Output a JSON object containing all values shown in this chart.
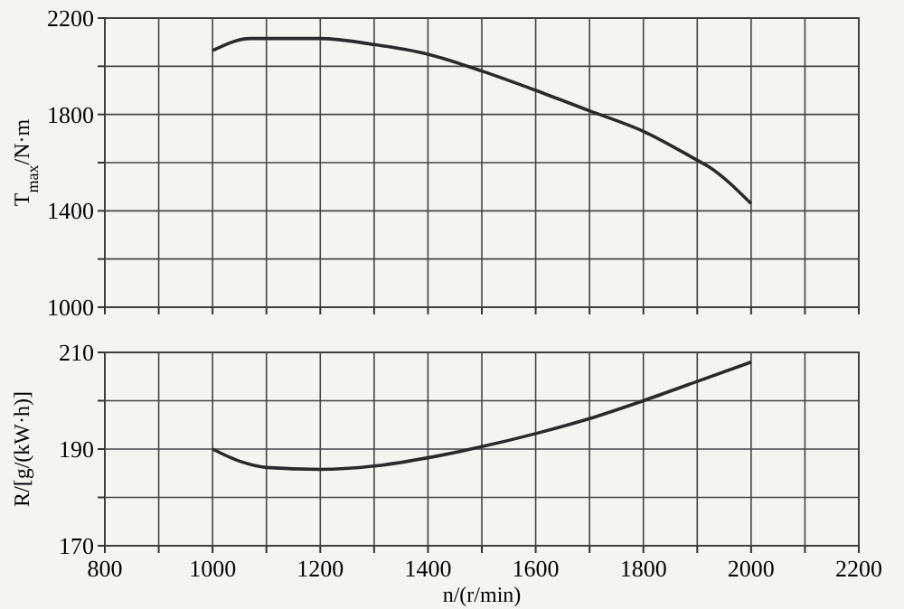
{
  "chart_data": [
    {
      "type": "line",
      "ylabel": "T$_{max}$/N·m",
      "x": [
        1000,
        1070,
        1200,
        1300,
        1400,
        1500,
        1600,
        1700,
        1800,
        1900,
        1920,
        2000
      ],
      "series": [
        {
          "color": "#2a2a2a",
          "values": [
            2065,
            2115,
            2115,
            2090,
            2050,
            1980,
            1900,
            1815,
            1730,
            1610,
            1585,
            1430
          ]
        }
      ],
      "xlim": [
        800,
        2200
      ],
      "xticks": [
        800,
        {
          "value": 900,
          "label": null
        },
        1000,
        {
          "value": 1100,
          "label": null
        },
        1200,
        {
          "value": 1300,
          "label": null
        },
        1400,
        {
          "value": 1500,
          "label": null
        },
        1600,
        {
          "value": 1700,
          "label": null
        },
        1800,
        {
          "value": 1900,
          "label": null
        },
        2000,
        {
          "value": 2100,
          "label": null
        },
        2200
      ],
      "ylim": [
        1000,
        2200
      ],
      "yticks": [
        1000,
        {
          "value": 1200,
          "label": null
        },
        1400,
        {
          "value": 1600,
          "label": null
        },
        1800,
        {
          "value": 2000,
          "label": null
        },
        2200
      ],
      "grid": true,
      "tick_labels": "y",
      "marker": "none",
      "line_style": "solid"
    },
    {
      "type": "line",
      "xlabel": "n/(r/min)",
      "ylabel": "R/[g/(kW·h)]",
      "x": [
        1000,
        1050,
        1100,
        1200,
        1300,
        1400,
        1500,
        1600,
        1700,
        1800,
        1900,
        2000
      ],
      "series": [
        {
          "color": "#2a2a2a",
          "values": [
            190,
            187.5,
            186.2,
            185.8,
            186.5,
            188.2,
            190.5,
            193.2,
            196.3,
            200,
            204,
            208
          ]
        }
      ],
      "xlim": [
        800,
        2200
      ],
      "xticks": [
        800,
        {
          "value": 900,
          "label": null
        },
        1000,
        {
          "value": 1100,
          "label": null
        },
        1200,
        {
          "value": 1300,
          "label": null
        },
        1400,
        {
          "value": 1500,
          "label": null
        },
        1600,
        {
          "value": 1700,
          "label": null
        },
        1800,
        {
          "value": 1900,
          "label": null
        },
        2000,
        {
          "value": 2100,
          "label": null
        },
        2200
      ],
      "ylim": [
        170,
        210
      ],
      "yticks": [
        170,
        {
          "value": 180,
          "label": null
        },
        190,
        {
          "value": 200,
          "label": null
        },
        210
      ],
      "grid": true,
      "marker": "none",
      "line_style": "solid"
    }
  ]
}
